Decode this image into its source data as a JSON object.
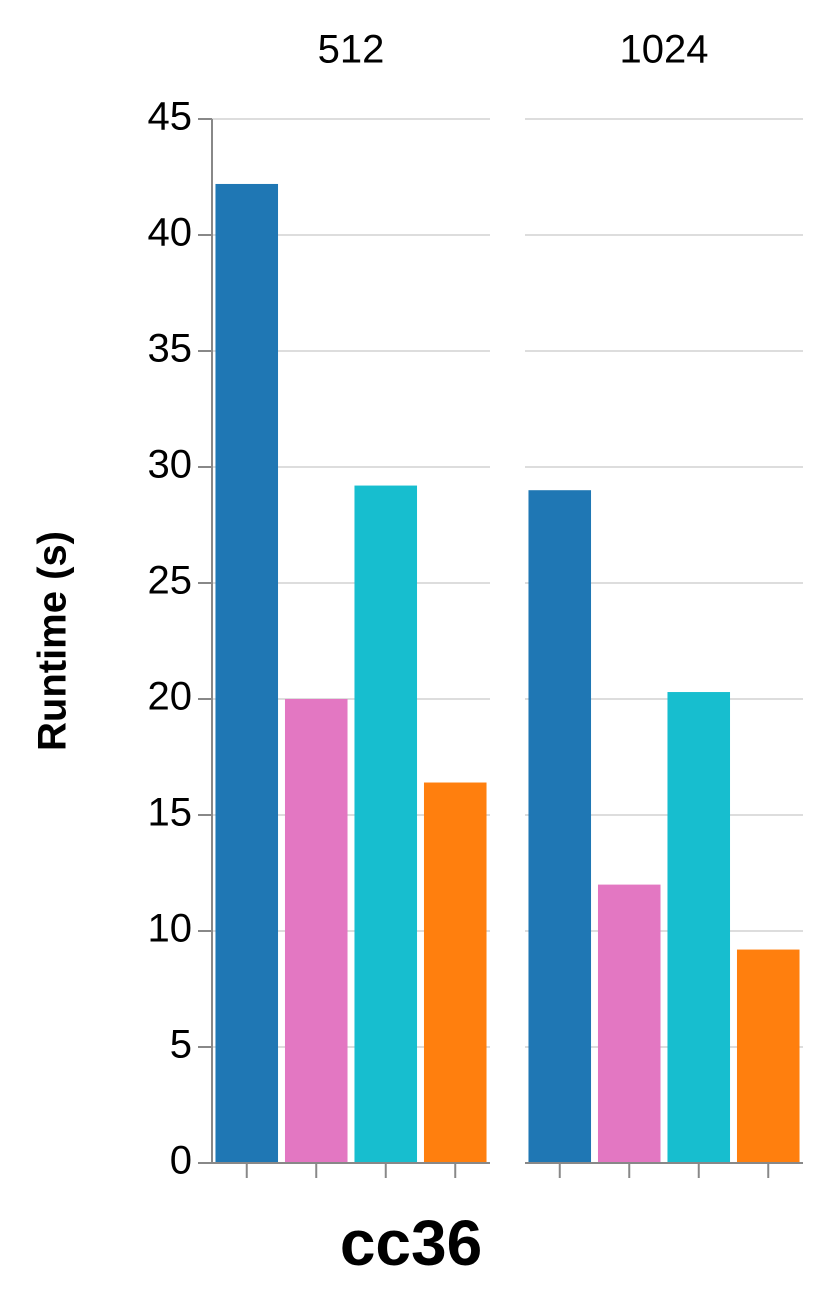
{
  "chart_data": [
    {
      "type": "bar",
      "title": "512",
      "ylabel": "Runtime (s)",
      "xlabel": "cc36",
      "categories": [
        null,
        null,
        null,
        null
      ],
      "values": [
        42.2,
        20.0,
        29.2,
        16.4
      ],
      "colors": [
        "#1f77b4",
        "#e377c2",
        "#17becf",
        "#ff7f0e"
      ],
      "ylim": [
        0,
        45
      ],
      "yticks": [
        0,
        5,
        10,
        15,
        20,
        25,
        30,
        35,
        40,
        45
      ],
      "grid": true
    },
    {
      "type": "bar",
      "title": "1024",
      "categories": [
        null,
        null,
        null,
        null
      ],
      "values": [
        29.0,
        12.0,
        20.3,
        9.2
      ],
      "colors": [
        "#1f77b4",
        "#e377c2",
        "#17becf",
        "#ff7f0e"
      ],
      "ylim": [
        0,
        45
      ],
      "yticks": [
        0,
        5,
        10,
        15,
        20,
        25,
        30,
        35,
        40,
        45
      ],
      "grid": true
    }
  ]
}
